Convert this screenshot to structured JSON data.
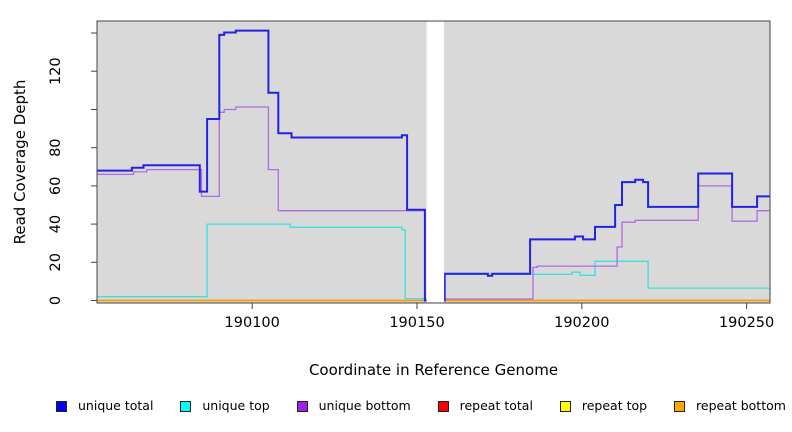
{
  "figure": {
    "xlabel": "Coordinate in Reference Genome",
    "ylabel": "Read Coverage Depth"
  },
  "chart_data": {
    "type": "line",
    "subtype": "step-coverage-plot",
    "title": "",
    "xlabel": "Coordinate in Reference Genome",
    "ylabel": "Read Coverage Depth",
    "panel_bg": "#d9d9d9",
    "axis_color": "#444444",
    "gap_band_color": "#ffffff",
    "xlim": [
      190052.9,
      190257.1
    ],
    "ylim": [
      0,
      146.3
    ],
    "x_ticks": [
      190100,
      190150,
      190200,
      190250
    ],
    "x_tick_labels": [
      "190100",
      "190150",
      "190200",
      "190250"
    ],
    "y_ticks": [
      0,
      20,
      40,
      60,
      80,
      100,
      120,
      140
    ],
    "y_tick_labels": [
      "0",
      "20",
      "40",
      "60",
      "80",
      "",
      "120",
      ""
    ],
    "grid": false,
    "legend_position": "bottom",
    "gap": {
      "from": 190152.9,
      "to": 190158.2
    },
    "series": [
      {
        "name": "repeat total",
        "color": "#e01212",
        "width": 1.3,
        "points": [
          [
            190052.9,
            0
          ],
          [
            190257.1,
            0
          ]
        ]
      },
      {
        "name": "repeat top",
        "color": "#f2f200",
        "width": 1.3,
        "points": [
          [
            190052.9,
            0
          ],
          [
            190257.1,
            0
          ]
        ]
      },
      {
        "name": "repeat bottom",
        "color": "#ff9d00",
        "width": 1.5,
        "points": [
          [
            190052.9,
            0
          ],
          [
            190257.1,
            0
          ]
        ]
      },
      {
        "name": "unique top",
        "color": "#3edede",
        "width": 1.3,
        "points": [
          [
            190052.9,
            2
          ],
          [
            190086.3,
            40
          ],
          [
            190111.5,
            38.3
          ],
          [
            190145.4,
            37
          ],
          [
            190146.4,
            1
          ],
          [
            190152.4,
            1
          ],
          [
            190158.4,
            13.7
          ],
          [
            190171.5,
            13
          ],
          [
            190172.8,
            13.7
          ],
          [
            190197,
            14.8
          ],
          [
            190199.5,
            13.2
          ],
          [
            190204,
            20.5
          ],
          [
            190220.1,
            6.5
          ],
          [
            190257.1,
            6.5
          ]
        ]
      },
      {
        "name": "unique bottom",
        "color": "#b36ae2",
        "width": 1.3,
        "points": [
          [
            190052.9,
            66
          ],
          [
            190064,
            67.3
          ],
          [
            190068,
            68.5
          ],
          [
            190084.6,
            54.5
          ],
          [
            190090,
            98.5
          ],
          [
            190091.5,
            100
          ],
          [
            190095,
            101.3
          ],
          [
            190104.9,
            68.5
          ],
          [
            190107.9,
            47
          ],
          [
            190152.4,
            0
          ],
          [
            190158.4,
            0.8
          ],
          [
            190185.2,
            17.3
          ],
          [
            190186.5,
            18
          ],
          [
            190210.7,
            28
          ],
          [
            190212.2,
            41
          ],
          [
            190216.2,
            42
          ],
          [
            190235.3,
            60
          ],
          [
            190245.6,
            41.5
          ],
          [
            190253.2,
            47
          ],
          [
            190257.1,
            47
          ]
        ]
      },
      {
        "name": "unique total",
        "color": "#2222e6",
        "width": 2,
        "points": [
          [
            190052.9,
            68
          ],
          [
            190063.5,
            69.5
          ],
          [
            190067,
            70.8
          ],
          [
            190084.1,
            57
          ],
          [
            190086.3,
            95
          ],
          [
            190090,
            139
          ],
          [
            190091.5,
            140.3
          ],
          [
            190095,
            141.3
          ],
          [
            190104.9,
            108.7
          ],
          [
            190107.9,
            87.5
          ],
          [
            190111.9,
            85.3
          ],
          [
            190145.4,
            86.5
          ],
          [
            190147,
            47.5
          ],
          [
            190152.4,
            0
          ],
          [
            190158.4,
            14
          ],
          [
            190171.5,
            13
          ],
          [
            190172.8,
            14
          ],
          [
            190184.3,
            32
          ],
          [
            190197.9,
            33.5
          ],
          [
            190200.4,
            32
          ],
          [
            190204,
            38.5
          ],
          [
            190210.1,
            50
          ],
          [
            190212.2,
            62
          ],
          [
            190216.2,
            63.2
          ],
          [
            190218.6,
            62
          ],
          [
            190220.1,
            49
          ],
          [
            190235.3,
            66.5
          ],
          [
            190245.6,
            49
          ],
          [
            190253.2,
            54.5
          ],
          [
            190257.1,
            54.5
          ]
        ]
      }
    ],
    "legend": [
      {
        "label": "unique total",
        "color": "#0000f5"
      },
      {
        "label": "unique top",
        "color": "#00ffff"
      },
      {
        "label": "unique bottom",
        "color": "#a020f0"
      },
      {
        "label": "repeat total",
        "color": "#ff0000"
      },
      {
        "label": "repeat top",
        "color": "#ffff00"
      },
      {
        "label": "repeat bottom",
        "color": "#ffa500"
      }
    ]
  }
}
